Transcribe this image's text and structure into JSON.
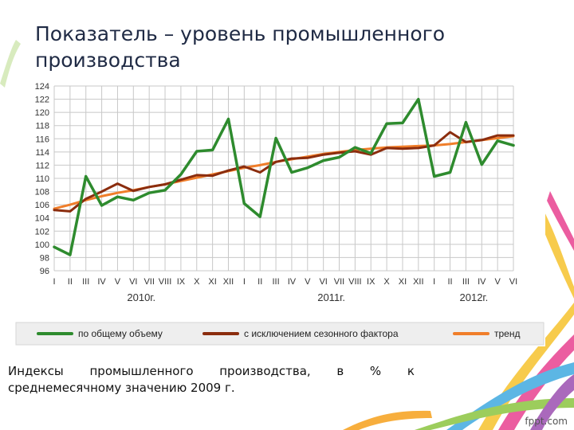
{
  "slide": {
    "title_line1": "Показатель – уровень промышленного",
    "title_line2": "производства",
    "caption_words": [
      "Индексы",
      "промышленного",
      "производства,",
      "в",
      "%",
      "к"
    ],
    "caption_line2": "среднемесячному значению 2009 г.",
    "brand": "fppt.com"
  },
  "colors": {
    "series_total": "#2e8b2e",
    "series_seasonal": "#8b2d0e",
    "series_trend": "#f07e2a",
    "grid": "#c8c8c8",
    "axis_text": "#333333"
  },
  "chart_data": {
    "type": "line",
    "title": "",
    "ylim": [
      96,
      124
    ],
    "yticks": [
      96,
      98,
      100,
      102,
      104,
      106,
      108,
      110,
      112,
      114,
      116,
      118,
      120,
      122,
      124
    ],
    "grid": true,
    "legend_position": "bottom",
    "categories": [
      "I",
      "II",
      "III",
      "IV",
      "V",
      "VI",
      "VII",
      "VIII",
      "IX",
      "X",
      "XI",
      "XII",
      "I",
      "II",
      "III",
      "IV",
      "V",
      "VI",
      "VII",
      "VIII",
      "IX",
      "X",
      "XI",
      "XII",
      "I",
      "II",
      "III",
      "IV",
      "V",
      "VI"
    ],
    "year_labels": [
      {
        "label": "2010г.",
        "center_index": 5.5
      },
      {
        "label": "2011г.",
        "center_index": 17.5
      },
      {
        "label": "2012г.",
        "center_index": 26.5
      }
    ],
    "series": [
      {
        "name": "по общему объему",
        "color_key": "series_total",
        "values": [
          99.6,
          98.4,
          110.3,
          105.9,
          107.2,
          106.7,
          107.8,
          108.2,
          110.6,
          114.1,
          114.3,
          119.0,
          106.2,
          104.2,
          116.1,
          110.9,
          111.6,
          112.7,
          113.2,
          114.7,
          113.8,
          118.3,
          118.4,
          122.0,
          110.3,
          110.9,
          118.5,
          112.1,
          115.7,
          115.0
        ]
      },
      {
        "name": "с исключением сезонного фактора",
        "color_key": "series_seasonal",
        "values": [
          105.2,
          105.0,
          106.9,
          108.0,
          109.2,
          108.1,
          108.7,
          109.1,
          109.8,
          110.5,
          110.4,
          111.2,
          111.8,
          110.9,
          112.5,
          113.0,
          113.1,
          113.6,
          113.9,
          114.1,
          113.6,
          114.6,
          114.5,
          114.6,
          115.0,
          117.0,
          115.5,
          115.8,
          116.5,
          116.5
        ]
      },
      {
        "name": "тренд",
        "color_key": "series_trend",
        "values": [
          105.4,
          106.0,
          106.7,
          107.3,
          107.8,
          108.2,
          108.7,
          109.1,
          109.6,
          110.1,
          110.6,
          111.1,
          111.6,
          112.0,
          112.5,
          112.9,
          113.3,
          113.7,
          114.0,
          114.3,
          114.5,
          114.7,
          114.8,
          114.9,
          115.0,
          115.2,
          115.5,
          115.8,
          116.1,
          116.4
        ]
      }
    ]
  }
}
